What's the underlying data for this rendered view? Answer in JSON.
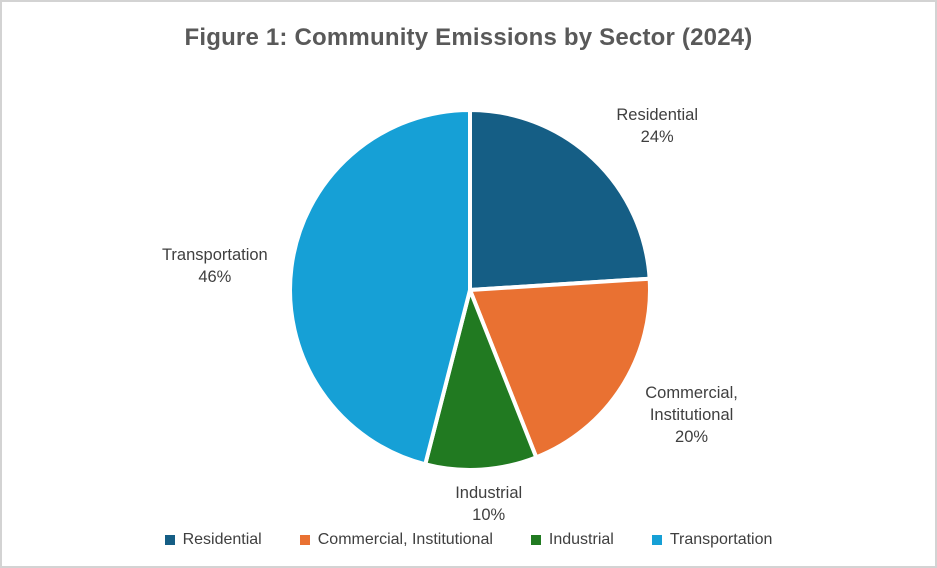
{
  "chart_data": {
    "type": "pie",
    "title": "Figure 1: Community Emissions by Sector (2024)",
    "unit": "%",
    "start_angle_deg": 0,
    "direction": "clockwise",
    "legend_position": "bottom",
    "background_color": "#FFFFFF",
    "frame_border_color": "#D3D3D3",
    "title_color": "#595959",
    "label_color": "#3F3F3F",
    "categories": [
      "Residential",
      "Commercial, Institutional",
      "Industrial",
      "Transportation"
    ],
    "values": [
      24,
      20,
      10,
      46
    ],
    "slices": [
      {
        "name": "Residential",
        "value": 24,
        "pct_label": "24%",
        "label_lines": [
          "Residential"
        ],
        "color": "#155E85"
      },
      {
        "name": "Commercial, Institutional",
        "value": 20,
        "pct_label": "20%",
        "label_lines": [
          "Commercial,",
          "Institutional"
        ],
        "color": "#E97132"
      },
      {
        "name": "Industrial",
        "value": 10,
        "pct_label": "10%",
        "label_lines": [
          "Industrial"
        ],
        "color": "#217A21"
      },
      {
        "name": "Transportation",
        "value": 46,
        "pct_label": "46%",
        "label_lines": [
          "Transportation"
        ],
        "color": "#16A0D6"
      }
    ],
    "legend": {
      "position": "bottom",
      "items": [
        "Residential",
        "Commercial, Institutional",
        "Industrial",
        "Transportation"
      ]
    }
  }
}
